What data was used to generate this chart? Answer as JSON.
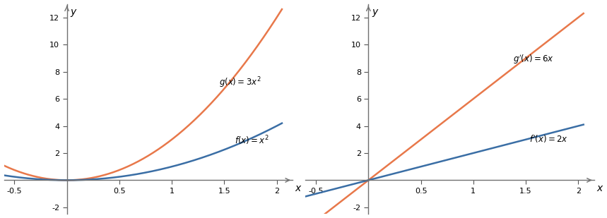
{
  "xlim": [
    -0.6,
    2.15
  ],
  "ylim": [
    -2.5,
    13
  ],
  "xticks": [
    -0.5,
    0.5,
    1.0,
    1.5,
    2.0
  ],
  "yticks": [
    -2,
    2,
    4,
    6,
    8,
    10,
    12
  ],
  "color_orange": "#E8784A",
  "color_blue": "#3A6EA5",
  "color_axis": "#707070",
  "label1_g": "$g(x) = 3x^2$",
  "label1_f": "$f(x) = x^2$",
  "label2_g": "$g^{\\prime}(x) = 6x$",
  "label2_f": "$f^{\\prime}(x) = 2x$",
  "xlabel": "$x$",
  "ylabel": "$y$",
  "figsize": [
    8.59,
    3.09
  ],
  "dpi": 100
}
